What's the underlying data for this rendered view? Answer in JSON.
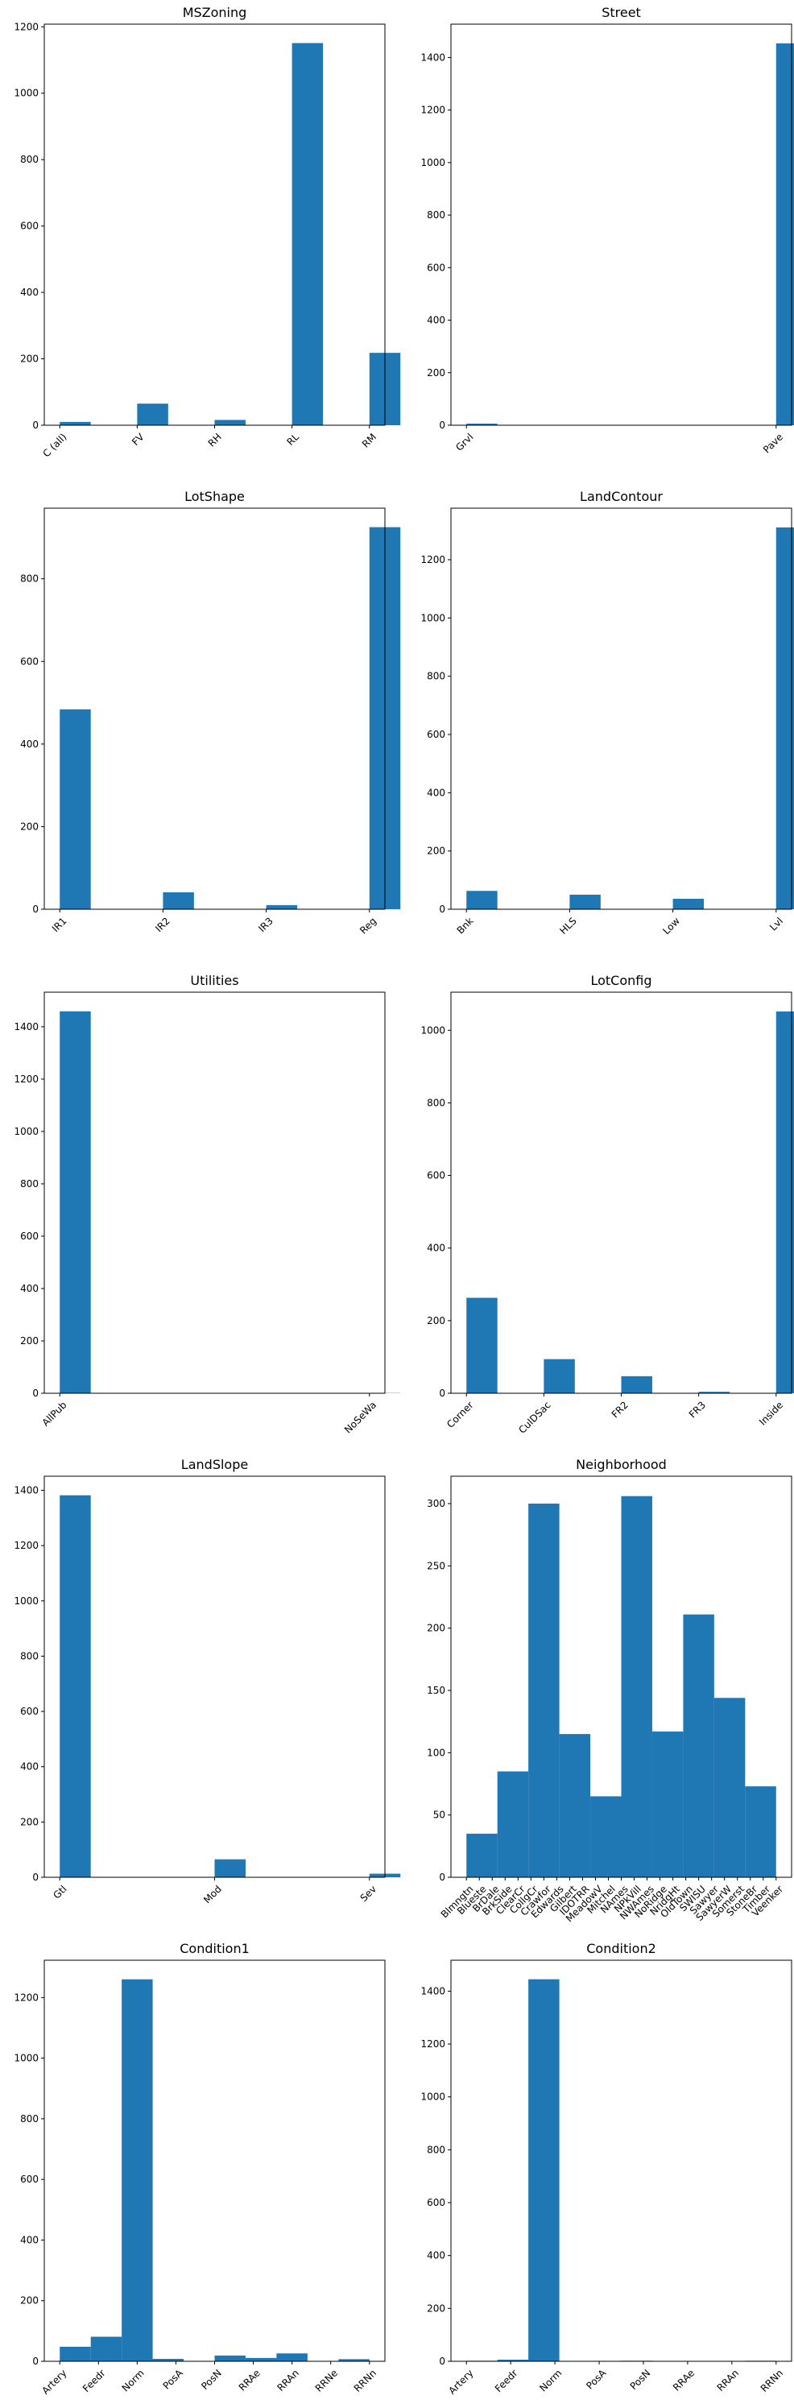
{
  "colors": {
    "bar": "#1f77b4",
    "axes": "#000000",
    "background": "#ffffff"
  },
  "chart_data": [
    {
      "type": "bar",
      "title": "MSZoning",
      "xlabel": "",
      "ylabel": "",
      "x_tick_labels": [
        "C (all)",
        "FV",
        "RH",
        "RL",
        "RM"
      ],
      "x_tick_positions": [
        0,
        1,
        2,
        3,
        4
      ],
      "xlim": [
        -0.2,
        4.2
      ],
      "bars": [
        {
          "x": 0,
          "value": 10
        },
        {
          "x": 1,
          "value": 65
        },
        {
          "x": 2,
          "value": 16
        },
        {
          "x": 3,
          "value": 1151
        },
        {
          "x": 4,
          "value": 218
        }
      ],
      "bar_width": 0.4,
      "ylim": [
        0,
        1208
      ],
      "y_ticks": [
        0,
        200,
        400,
        600,
        800,
        1000,
        1200
      ],
      "grid": false,
      "legend": "none"
    },
    {
      "type": "bar",
      "title": "Street",
      "xlabel": "",
      "ylabel": "",
      "x_tick_labels": [
        "Grvl",
        "Pave"
      ],
      "x_tick_positions": [
        0,
        1
      ],
      "xlim": [
        -0.05,
        1.05
      ],
      "bars": [
        {
          "x": 0,
          "value": 6
        },
        {
          "x": 1,
          "value": 1454
        }
      ],
      "bar_width": 0.1,
      "ylim": [
        0,
        1527
      ],
      "y_ticks": [
        0,
        200,
        400,
        600,
        800,
        1000,
        1200,
        1400
      ],
      "grid": false,
      "legend": "none"
    },
    {
      "type": "bar",
      "title": "LotShape",
      "xlabel": "",
      "ylabel": "",
      "x_tick_labels": [
        "IR1",
        "IR2",
        "IR3",
        "Reg"
      ],
      "x_tick_positions": [
        0,
        1,
        2,
        3
      ],
      "xlim": [
        -0.15,
        3.15
      ],
      "bars": [
        {
          "x": 0,
          "value": 484
        },
        {
          "x": 1,
          "value": 41
        },
        {
          "x": 2,
          "value": 10
        },
        {
          "x": 3,
          "value": 925
        }
      ],
      "bar_width": 0.3,
      "ylim": [
        0,
        971
      ],
      "y_ticks": [
        0,
        200,
        400,
        600,
        800
      ],
      "grid": false,
      "legend": "none"
    },
    {
      "type": "bar",
      "title": "LandContour",
      "xlabel": "",
      "ylabel": "",
      "x_tick_labels": [
        "Bnk",
        "HLS",
        "Low",
        "Lvl"
      ],
      "x_tick_positions": [
        0,
        1,
        2,
        3
      ],
      "xlim": [
        -0.15,
        3.15
      ],
      "bars": [
        {
          "x": 0,
          "value": 63
        },
        {
          "x": 1,
          "value": 50
        },
        {
          "x": 2,
          "value": 36
        },
        {
          "x": 3,
          "value": 1311
        }
      ],
      "bar_width": 0.3,
      "ylim": [
        0,
        1377
      ],
      "y_ticks": [
        0,
        200,
        400,
        600,
        800,
        1000,
        1200
      ],
      "grid": false,
      "legend": "none"
    },
    {
      "type": "bar",
      "title": "Utilities",
      "xlabel": "",
      "ylabel": "",
      "x_tick_labels": [
        "AllPub",
        "NoSeWa"
      ],
      "x_tick_positions": [
        0,
        1
      ],
      "xlim": [
        -0.05,
        1.05
      ],
      "bars": [
        {
          "x": 0,
          "value": 1459
        },
        {
          "x": 1,
          "value": 1
        }
      ],
      "bar_width": 0.1,
      "ylim": [
        0,
        1532
      ],
      "y_ticks": [
        0,
        200,
        400,
        600,
        800,
        1000,
        1200,
        1400
      ],
      "grid": false,
      "legend": "none"
    },
    {
      "type": "bar",
      "title": "LotConfig",
      "xlabel": "",
      "ylabel": "",
      "x_tick_labels": [
        "Corner",
        "CulDSac",
        "FR2",
        "FR3",
        "Inside"
      ],
      "x_tick_positions": [
        0,
        1,
        2,
        3,
        4
      ],
      "xlim": [
        -0.2,
        4.2
      ],
      "bars": [
        {
          "x": 0,
          "value": 263
        },
        {
          "x": 1,
          "value": 94
        },
        {
          "x": 2,
          "value": 47
        },
        {
          "x": 3,
          "value": 4
        },
        {
          "x": 4,
          "value": 1052
        }
      ],
      "bar_width": 0.4,
      "ylim": [
        0,
        1105
      ],
      "y_ticks": [
        0,
        200,
        400,
        600,
        800,
        1000
      ],
      "grid": false,
      "legend": "none"
    },
    {
      "type": "bar",
      "title": "LandSlope",
      "xlabel": "",
      "ylabel": "",
      "x_tick_labels": [
        "Gtl",
        "Mod",
        "Sev"
      ],
      "x_tick_positions": [
        0,
        1,
        2
      ],
      "xlim": [
        -0.1,
        2.1
      ],
      "bars": [
        {
          "x": 0,
          "value": 1382
        },
        {
          "x": 1,
          "value": 65
        },
        {
          "x": 2,
          "value": 13
        }
      ],
      "bar_width": 0.2,
      "ylim": [
        0,
        1451
      ],
      "y_ticks": [
        0,
        200,
        400,
        600,
        800,
        1000,
        1200,
        1400
      ],
      "grid": false,
      "legend": "none"
    },
    {
      "type": "bar",
      "title": "Neighborhood",
      "xlabel": "",
      "ylabel": "",
      "x_tick_labels": [
        "Blmngtn",
        "Blueste",
        "BrDale",
        "BrkSide",
        "ClearCr",
        "CollgCr",
        "Crawfor",
        "Edwards",
        "Gilbert",
        "IDOTRR",
        "MeadowV",
        "Mitchel",
        "NAmes",
        "NPkVill",
        "NWAmes",
        "NoRidge",
        "NridgHt",
        "OldTown",
        "SWISU",
        "Sawyer",
        "SawyerW",
        "Somerst",
        "StoneBr",
        "Timber",
        "Veenker"
      ],
      "x_tick_positions": [
        0,
        1,
        2,
        3,
        4,
        5,
        6,
        7,
        8,
        9,
        10,
        11,
        12,
        13,
        14,
        15,
        16,
        17,
        18,
        19,
        20,
        21,
        22,
        23,
        24
      ],
      "xlim": [
        -1.2,
        25.2
      ],
      "bars": [
        {
          "x": 0.0,
          "value": 35
        },
        {
          "x": 2.4,
          "value": 85
        },
        {
          "x": 4.8,
          "value": 300
        },
        {
          "x": 7.2,
          "value": 115
        },
        {
          "x": 9.6,
          "value": 65
        },
        {
          "x": 12.0,
          "value": 306
        },
        {
          "x": 14.4,
          "value": 117
        },
        {
          "x": 16.8,
          "value": 211
        },
        {
          "x": 19.2,
          "value": 144
        },
        {
          "x": 21.6,
          "value": 73
        }
      ],
      "bar_width": 2.4,
      "ylim": [
        0,
        322
      ],
      "y_ticks": [
        0,
        50,
        100,
        150,
        200,
        250,
        300
      ],
      "grid": false,
      "legend": "none"
    },
    {
      "type": "bar",
      "title": "Condition1",
      "xlabel": "",
      "ylabel": "",
      "x_tick_labels": [
        "Artery",
        "Feedr",
        "Norm",
        "PosA",
        "PosN",
        "RRAe",
        "RRAn",
        "RRNe",
        "RRNn"
      ],
      "x_tick_positions": [
        0,
        1,
        2,
        3,
        4,
        5,
        6,
        7,
        8
      ],
      "xlim": [
        -0.4,
        8.4
      ],
      "bars": [
        {
          "x": 0.0,
          "value": 48
        },
        {
          "x": 0.8,
          "value": 81
        },
        {
          "x": 1.6,
          "value": 1260
        },
        {
          "x": 2.4,
          "value": 8
        },
        {
          "x": 4.0,
          "value": 19
        },
        {
          "x": 4.8,
          "value": 11
        },
        {
          "x": 5.6,
          "value": 26
        },
        {
          "x": 7.2,
          "value": 7
        }
      ],
      "bar_width": 0.8,
      "ylim": [
        0,
        1323
      ],
      "y_ticks": [
        0,
        200,
        400,
        600,
        800,
        1000,
        1200
      ],
      "grid": false,
      "legend": "none"
    },
    {
      "type": "bar",
      "title": "Condition2",
      "xlabel": "",
      "ylabel": "",
      "x_tick_labels": [
        "Artery",
        "Feedr",
        "Norm",
        "PosA",
        "PosN",
        "RRAe",
        "RRAn",
        "RRNn"
      ],
      "x_tick_positions": [
        0,
        1,
        2,
        3,
        4,
        5,
        6,
        7
      ],
      "xlim": [
        -0.35,
        7.35
      ],
      "bars": [
        {
          "x": 0.0,
          "value": 2
        },
        {
          "x": 0.7,
          "value": 6
        },
        {
          "x": 1.4,
          "value": 1445
        },
        {
          "x": 2.1,
          "value": 0
        },
        {
          "x": 2.8,
          "value": 1
        },
        {
          "x": 3.5,
          "value": 2
        },
        {
          "x": 4.9,
          "value": 1
        },
        {
          "x": 5.6,
          "value": 1
        },
        {
          "x": 6.3,
          "value": 2
        }
      ],
      "bar_width": 0.7,
      "ylim": [
        0,
        1517
      ],
      "y_ticks": [
        0,
        200,
        400,
        600,
        800,
        1000,
        1200,
        1400
      ],
      "grid": false,
      "legend": "none"
    }
  ]
}
